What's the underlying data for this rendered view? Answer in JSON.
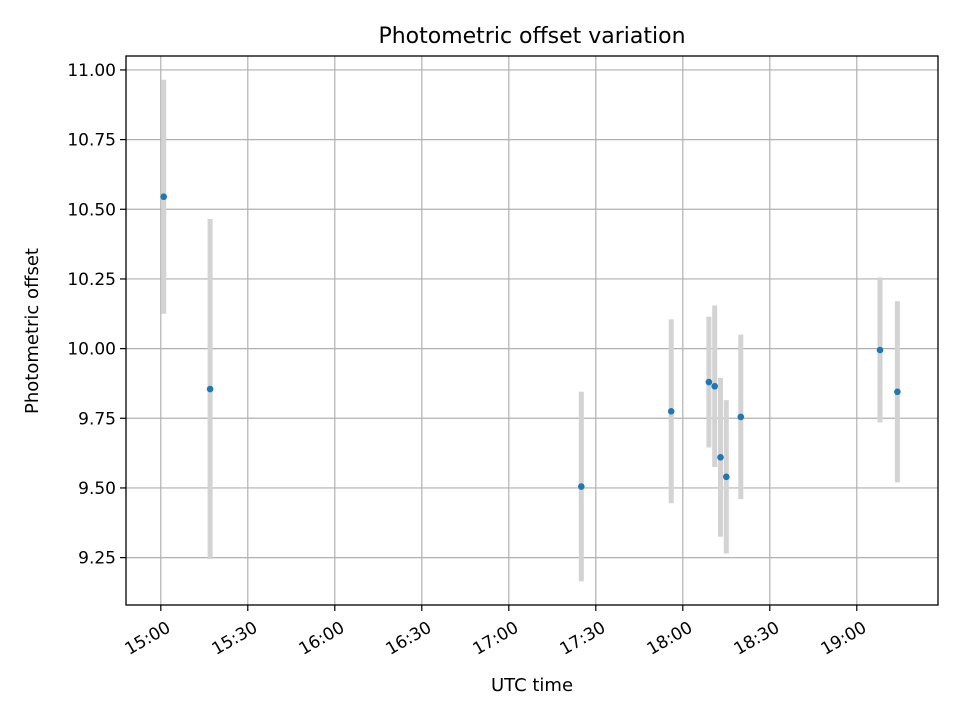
{
  "chart_data": {
    "type": "scatter",
    "title": "Photometric offset variation",
    "xlabel": "UTC time",
    "ylabel": "Photometric offset",
    "xlim": [
      "14:48",
      "19:28"
    ],
    "ylim": [
      9.08,
      11.05
    ],
    "x_ticks": [
      "15:00",
      "15:30",
      "16:00",
      "16:30",
      "17:00",
      "17:30",
      "18:00",
      "18:30",
      "19:00"
    ],
    "y_ticks": [
      "9.25",
      "9.50",
      "9.75",
      "10.00",
      "10.25",
      "10.50",
      "10.75",
      "11.00"
    ],
    "grid": true,
    "colors": {
      "point": "#1f77b4",
      "errorbar": "#d3d3d3"
    },
    "series": [
      {
        "points": [
          {
            "x": "15:01",
            "y": 10.545,
            "err": 0.42
          },
          {
            "x": "15:17",
            "y": 9.855,
            "err": 0.61
          },
          {
            "x": "17:25",
            "y": 9.505,
            "err": 0.34
          },
          {
            "x": "17:56",
            "y": 9.775,
            "err": 0.33
          },
          {
            "x": "18:09",
            "y": 9.88,
            "err": 0.235
          },
          {
            "x": "18:11",
            "y": 9.865,
            "err": 0.29
          },
          {
            "x": "18:13",
            "y": 9.61,
            "err": 0.285
          },
          {
            "x": "18:15",
            "y": 9.54,
            "err": 0.275
          },
          {
            "x": "18:20",
            "y": 9.755,
            "err": 0.295
          },
          {
            "x": "19:08",
            "y": 9.995,
            "err": 0.26
          },
          {
            "x": "19:14",
            "y": 9.845,
            "err": 0.325
          }
        ]
      }
    ]
  }
}
